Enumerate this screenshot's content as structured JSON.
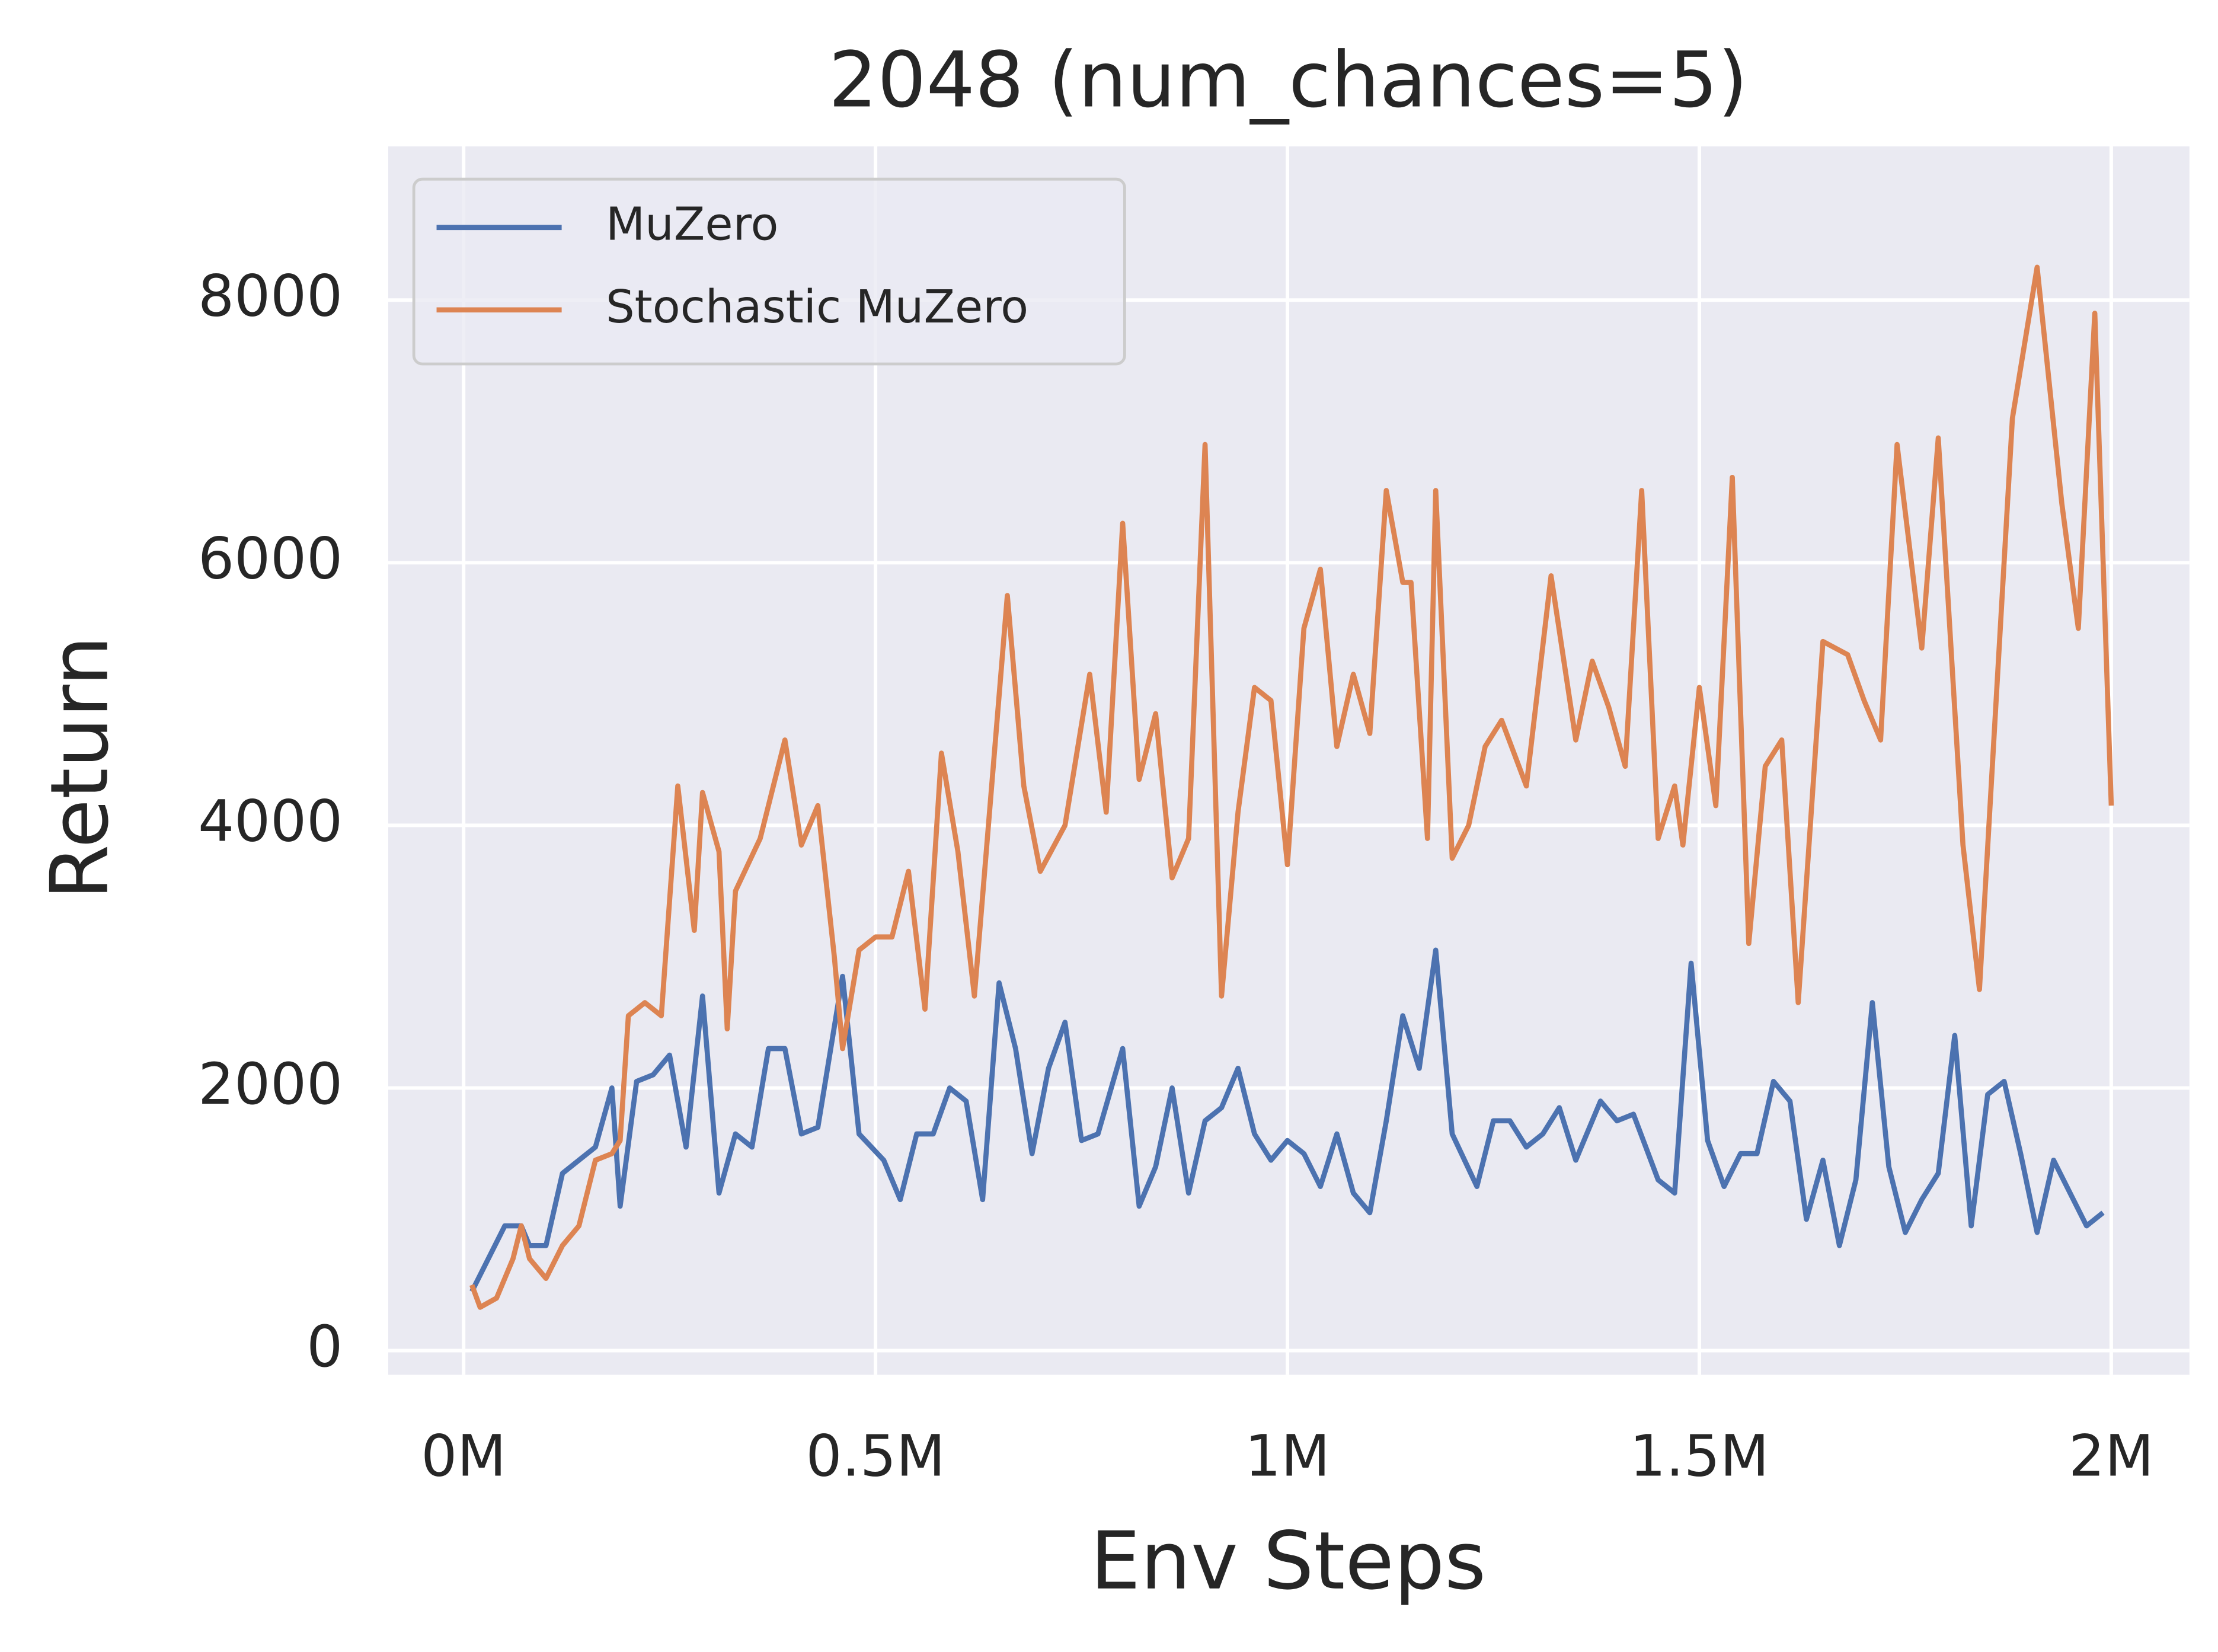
{
  "chart_data": {
    "type": "line",
    "title": "2048 (num_chances=5)",
    "x_label": "Env Steps",
    "y_label": "Return",
    "xlim": [
      -91500,
      2094900
    ],
    "ylim": [
      -184,
      9170
    ],
    "xticks": [
      {
        "value": 0,
        "label": "0M"
      },
      {
        "value": 500000,
        "label": "0.5M"
      },
      {
        "value": 1000000,
        "label": "1M"
      },
      {
        "value": 1500000,
        "label": "1.5M"
      },
      {
        "value": 2000000,
        "label": "2M"
      }
    ],
    "yticks": [
      0,
      2000,
      4000,
      6000,
      8000
    ],
    "grid": true,
    "legend": "upper-left",
    "series": [
      {
        "name": "MuZero",
        "color": "#4c72b0",
        "x": [
          10000,
          30000,
          50000,
          70000,
          80000,
          100000,
          120000,
          140000,
          160000,
          180000,
          190000,
          210000,
          230000,
          250000,
          270000,
          290000,
          310000,
          330000,
          350000,
          370000,
          390000,
          410000,
          430000,
          460000,
          480000,
          510000,
          530000,
          550000,
          570000,
          590000,
          610000,
          630000,
          650000,
          670000,
          690000,
          710000,
          730000,
          750000,
          770000,
          800000,
          820000,
          840000,
          860000,
          880000,
          900000,
          920000,
          940000,
          960000,
          980000,
          1000000,
          1020000,
          1040000,
          1060000,
          1080000,
          1100000,
          1120000,
          1140000,
          1160000,
          1180000,
          1200000,
          1230000,
          1250000,
          1270000,
          1290000,
          1310000,
          1330000,
          1350000,
          1380000,
          1400000,
          1420000,
          1450000,
          1470000,
          1490000,
          1510000,
          1530000,
          1550000,
          1570000,
          1590000,
          1610000,
          1630000,
          1650000,
          1670000,
          1690000,
          1710000,
          1730000,
          1750000,
          1770000,
          1790000,
          1810000,
          1830000,
          1850000,
          1870000,
          1890000,
          1910000,
          1930000,
          1970000,
          1990000
        ],
        "values": [
          450,
          700,
          950,
          950,
          800,
          800,
          1350,
          1450,
          1550,
          2000,
          1100,
          2050,
          2100,
          2250,
          1550,
          2700,
          1200,
          1650,
          1550,
          2300,
          2300,
          1650,
          1700,
          2850,
          1650,
          1450,
          1150,
          1650,
          1650,
          2000,
          1900,
          1150,
          2800,
          2300,
          1500,
          2150,
          2500,
          1600,
          1650,
          2300,
          1100,
          1400,
          2000,
          1200,
          1750,
          1850,
          2150,
          1650,
          1450,
          1600,
          1500,
          1250,
          1650,
          1200,
          1050,
          1750,
          2550,
          2150,
          3050,
          1650,
          1250,
          1750,
          1750,
          1550,
          1650,
          1850,
          1450,
          1900,
          1750,
          1800,
          1300,
          1200,
          2950,
          1600,
          1250,
          1500,
          1500,
          2050,
          1900,
          1000,
          1450,
          800,
          1300,
          2650,
          1400,
          900,
          1150,
          1350,
          2400,
          950,
          1950,
          2050,
          1500,
          900,
          1450,
          950,
          1050
        ]
      },
      {
        "name": "Stochastic MuZero",
        "color": "#dd8452",
        "x": [
          10000,
          20000,
          40000,
          60000,
          70000,
          80000,
          100000,
          120000,
          140000,
          160000,
          180000,
          190000,
          200000,
          220000,
          240000,
          260000,
          280000,
          290000,
          310000,
          320000,
          330000,
          360000,
          390000,
          410000,
          430000,
          450000,
          460000,
          480000,
          500000,
          520000,
          540000,
          560000,
          580000,
          600000,
          620000,
          660000,
          680000,
          700000,
          730000,
          760000,
          780000,
          800000,
          820000,
          840000,
          860000,
          880000,
          900000,
          920000,
          940000,
          960000,
          980000,
          1000000,
          1020000,
          1040000,
          1060000,
          1080000,
          1100000,
          1120000,
          1140000,
          1150000,
          1170000,
          1180000,
          1200000,
          1220000,
          1240000,
          1260000,
          1290000,
          1320000,
          1350000,
          1370000,
          1390000,
          1410000,
          1430000,
          1450000,
          1470000,
          1480000,
          1500000,
          1520000,
          1540000,
          1560000,
          1580000,
          1600000,
          1620000,
          1650000,
          1680000,
          1700000,
          1720000,
          1740000,
          1770000,
          1790000,
          1820000,
          1840000,
          1880000,
          1910000,
          1940000,
          1960000,
          1980000,
          2000000
        ],
        "values": [
          500,
          330,
          400,
          700,
          950,
          700,
          550,
          800,
          950,
          1450,
          1500,
          1600,
          2550,
          2650,
          2550,
          4300,
          3200,
          4250,
          3800,
          2450,
          3500,
          3900,
          4650,
          3850,
          4150,
          3000,
          2300,
          3050,
          3150,
          3150,
          3650,
          2600,
          4550,
          3800,
          2700,
          5750,
          4300,
          3650,
          4000,
          5150,
          4100,
          6300,
          4350,
          4850,
          3600,
          3900,
          6900,
          2700,
          4100,
          5050,
          4950,
          3700,
          5500,
          5950,
          4600,
          5150,
          4700,
          6550,
          5850,
          5850,
          3900,
          6550,
          3750,
          4000,
          4600,
          4800,
          4300,
          5900,
          4650,
          5250,
          4900,
          4450,
          6550,
          3900,
          4300,
          3850,
          5050,
          4150,
          6650,
          3100,
          4450,
          4650,
          2650,
          5400,
          5300,
          4950,
          4650,
          6900,
          5350,
          6950,
          3850,
          2750,
          7100,
          8250,
          6450,
          5500,
          7900,
          4150
        ]
      }
    ]
  }
}
